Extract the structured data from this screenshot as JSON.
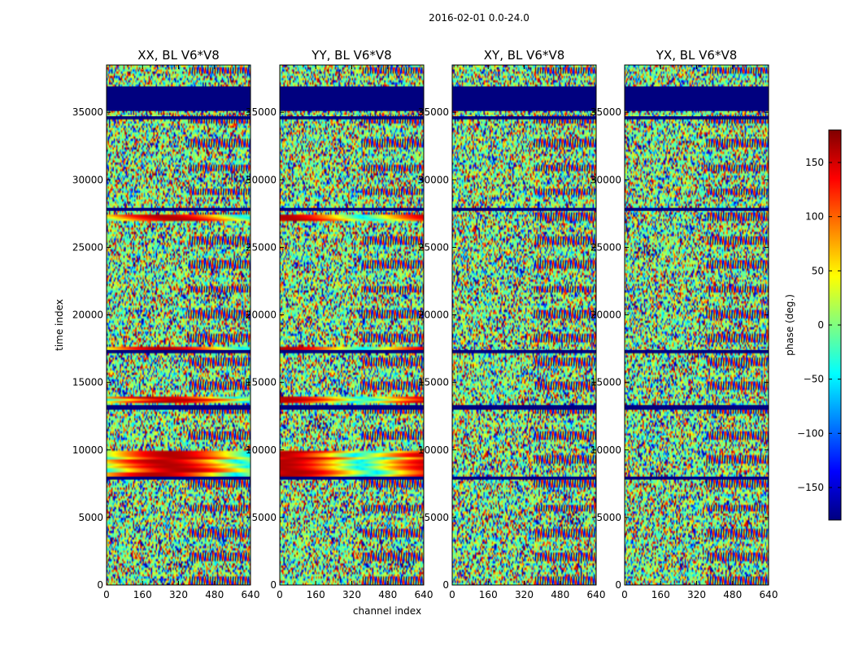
{
  "chart_data": {
    "type": "heatmap",
    "suptitle": "2016-02-01 0.0-24.0",
    "xlabel": "channel index",
    "ylabel": "time index",
    "colorbar_label": "phase (deg.)",
    "colormap": "jet",
    "xlim": [
      0,
      640
    ],
    "ylim": [
      0,
      38500
    ],
    "x_ticks": [
      0,
      160,
      320,
      480,
      640
    ],
    "y_ticks": [
      0,
      5000,
      10000,
      15000,
      20000,
      25000,
      30000,
      35000
    ],
    "clim": [
      -180,
      180
    ],
    "colorbar_ticks": [
      -150,
      -100,
      -50,
      0,
      50,
      100,
      150
    ],
    "colorbar_tick_labels": [
      "−150",
      "−100",
      "−50",
      "0",
      "50",
      "100",
      "150"
    ],
    "panels": [
      {
        "title": "XX, BL V6*V8",
        "polarization": "XX"
      },
      {
        "title": "YY, BL V6*V8",
        "polarization": "YY"
      },
      {
        "title": "XY, BL V6*V8",
        "polarization": "XY"
      },
      {
        "title": "YX, BL V6*V8",
        "polarization": "YX"
      }
    ],
    "flagged_time_ranges": [
      [
        35100,
        36900
      ],
      [
        34500,
        34700
      ],
      [
        27700,
        27900
      ],
      [
        17200,
        17400
      ],
      [
        13000,
        13300
      ],
      [
        7800,
        8000
      ]
    ],
    "coherent_phase_bands": [
      [
        27000,
        27500
      ],
      [
        17400,
        17700
      ],
      [
        13500,
        14000
      ],
      [
        7900,
        9900
      ]
    ]
  },
  "colors": {
    "flagged": "#00007f",
    "axis": "#000000",
    "background": "#ffffff"
  }
}
